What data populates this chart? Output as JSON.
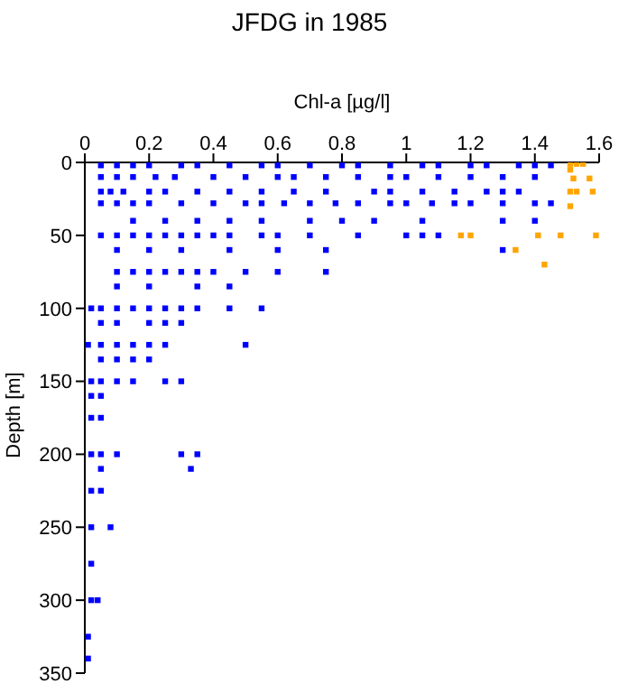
{
  "chart_data": {
    "type": "scatter",
    "title": "JFDG in 1985",
    "xlabel": "Chl-a [µg/l]",
    "ylabel": "Depth [m]",
    "xlim": [
      0,
      1.6
    ],
    "xticks": [
      0,
      0.2,
      0.4,
      0.6,
      0.8,
      1,
      1.2,
      1.4,
      1.6
    ],
    "ylim": [
      350,
      0
    ],
    "yticks": [
      0,
      50,
      100,
      150,
      200,
      250,
      300,
      350
    ],
    "grid": false,
    "marker": "square",
    "series": [
      {
        "color": "#0000ff",
        "x": [
          0.05,
          0.1,
          0.15,
          0.2,
          0.3,
          0.35,
          0.45,
          0.55,
          0.6,
          0.7,
          0.8,
          0.85,
          0.95,
          1.05,
          1.1,
          1.2,
          1.25,
          1.35,
          1.4,
          1.45,
          0.05,
          0.1,
          0.15,
          0.22,
          0.28,
          0.4,
          0.5,
          0.6,
          0.65,
          0.75,
          0.85,
          0.95,
          1.0,
          1.1,
          1.2,
          1.3,
          1.4,
          0.05,
          0.08,
          0.12,
          0.2,
          0.25,
          0.35,
          0.45,
          0.55,
          0.65,
          0.75,
          0.9,
          0.95,
          1.05,
          1.15,
          1.25,
          1.3,
          1.35,
          0.05,
          0.1,
          0.15,
          0.2,
          0.3,
          0.4,
          0.5,
          0.55,
          0.62,
          0.7,
          0.78,
          0.85,
          0.95,
          1.0,
          1.08,
          1.15,
          1.2,
          1.3,
          1.4,
          1.45,
          0.15,
          0.25,
          0.35,
          0.45,
          0.55,
          0.7,
          0.8,
          0.9,
          1.05,
          1.3,
          1.4,
          0.05,
          0.1,
          0.15,
          0.2,
          0.25,
          0.3,
          0.35,
          0.4,
          0.45,
          0.55,
          0.6,
          0.7,
          0.85,
          1.0,
          1.1,
          1.05,
          0.1,
          0.2,
          0.3,
          0.45,
          0.6,
          0.75,
          1.3,
          0.1,
          0.15,
          0.2,
          0.25,
          0.3,
          0.35,
          0.4,
          0.5,
          0.6,
          0.75,
          0.1,
          0.2,
          0.35,
          0.45,
          0.02,
          0.05,
          0.1,
          0.15,
          0.2,
          0.25,
          0.3,
          0.35,
          0.45,
          0.55,
          0.05,
          0.1,
          0.2,
          0.25,
          0.3,
          0.01,
          0.05,
          0.1,
          0.15,
          0.2,
          0.25,
          0.5,
          0.05,
          0.1,
          0.15,
          0.2,
          0.02,
          0.05,
          0.1,
          0.15,
          0.25,
          0.3,
          0.02,
          0.05,
          0.02,
          0.05,
          0.02,
          0.05,
          0.1,
          0.3,
          0.35,
          0.05,
          0.33,
          0.02,
          0.05,
          0.02,
          0.08,
          0.02,
          0.02,
          0.04,
          0.01,
          0.01
        ],
        "values": [
          2,
          2,
          2,
          2,
          2,
          2,
          2,
          2,
          2,
          2,
          2,
          2,
          2,
          2,
          2,
          2,
          2,
          2,
          2,
          2,
          10,
          10,
          10,
          10,
          10,
          10,
          10,
          10,
          10,
          10,
          10,
          10,
          10,
          10,
          10,
          10,
          10,
          20,
          20,
          20,
          20,
          20,
          20,
          20,
          20,
          20,
          20,
          20,
          20,
          20,
          20,
          20,
          20,
          20,
          28,
          28,
          28,
          28,
          28,
          28,
          28,
          28,
          28,
          28,
          28,
          28,
          28,
          28,
          28,
          28,
          28,
          28,
          28,
          28,
          40,
          40,
          40,
          40,
          40,
          40,
          40,
          40,
          40,
          40,
          40,
          50,
          50,
          50,
          50,
          50,
          50,
          50,
          50,
          50,
          50,
          50,
          50,
          50,
          50,
          50,
          50,
          60,
          60,
          60,
          60,
          60,
          60,
          60,
          75,
          75,
          75,
          75,
          75,
          75,
          75,
          75,
          75,
          75,
          85,
          85,
          85,
          85,
          100,
          100,
          100,
          100,
          100,
          100,
          100,
          100,
          100,
          100,
          110,
          110,
          110,
          110,
          110,
          125,
          125,
          125,
          125,
          125,
          125,
          125,
          135,
          135,
          135,
          135,
          150,
          150,
          150,
          150,
          150,
          150,
          160,
          160,
          175,
          175,
          200,
          200,
          200,
          200,
          200,
          210,
          210,
          225,
          225,
          250,
          250,
          275,
          300,
          300,
          325,
          340
        ]
      },
      {
        "color": "#ffa500",
        "x": [
          1.51,
          1.53,
          1.55,
          1.51,
          1.52,
          1.57,
          1.51,
          1.53,
          1.58,
          1.51,
          1.17,
          1.2,
          1.41,
          1.48,
          1.59,
          1.34,
          1.43
        ],
        "values": [
          1,
          1,
          1,
          5,
          11,
          11,
          20,
          20,
          20,
          30,
          50,
          50,
          50,
          50,
          50,
          60,
          70
        ]
      }
    ]
  }
}
